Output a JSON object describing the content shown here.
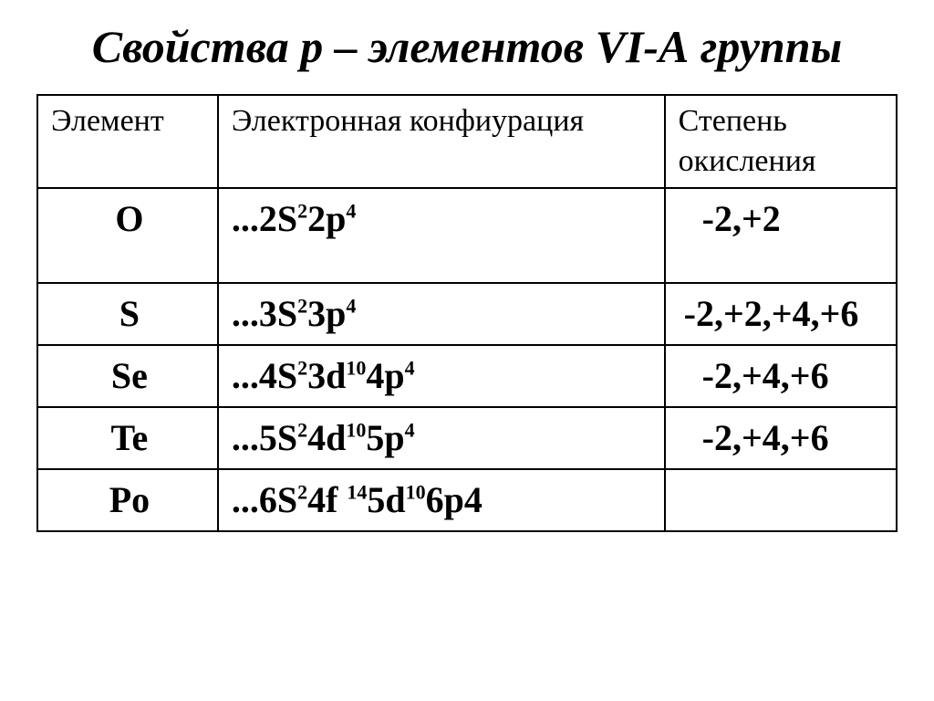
{
  "title": "Свойства р – элементов VI-А группы",
  "columns": [
    "Элемент",
    "Электронная конфиурация",
    "Степень окисления"
  ],
  "rows": [
    {
      "element": "O",
      "config": [
        {
          "t": "...2S"
        },
        {
          "t": "2",
          "sup": true
        },
        {
          "t": "2p"
        },
        {
          "t": "4",
          "sup": true
        }
      ],
      "oxidation": "-2,+2",
      "ox_nudge": true,
      "tall": true
    },
    {
      "element": "S",
      "config": [
        {
          "t": "...3S"
        },
        {
          "t": "2",
          "sup": true
        },
        {
          "t": "3p"
        },
        {
          "t": "4",
          "sup": true
        }
      ],
      "oxidation": "-2,+2,+4,+6",
      "ox_nudge": false,
      "tall": false
    },
    {
      "element": "Se",
      "config": [
        {
          "t": "...4S"
        },
        {
          "t": "2",
          "sup": true
        },
        {
          "t": "3d"
        },
        {
          "t": "10",
          "sup": true
        },
        {
          "t": "4p"
        },
        {
          "t": "4",
          "sup": true
        }
      ],
      "oxidation": "-2,+4,+6",
      "ox_nudge": true,
      "tall": false
    },
    {
      "element": "Te",
      "config": [
        {
          "t": "...5S"
        },
        {
          "t": "2",
          "sup": true
        },
        {
          "t": "4d"
        },
        {
          "t": "10",
          "sup": true
        },
        {
          "t": "5p"
        },
        {
          "t": "4",
          "sup": true
        }
      ],
      "oxidation": "-2,+4,+6",
      "ox_nudge": true,
      "tall": false
    },
    {
      "element": "Po",
      "config": [
        {
          "t": "...6S"
        },
        {
          "t": "2",
          "sup": true
        },
        {
          "t": "4f "
        },
        {
          "t": "14",
          "sup": true
        },
        {
          "t": "5d"
        },
        {
          "t": "10",
          "sup": true
        },
        {
          "t": "6p4"
        }
      ],
      "oxidation": "",
      "ox_nudge": false,
      "tall": false
    }
  ],
  "style": {
    "title_fontsize": 50,
    "header_fontsize": 34,
    "body_fontsize": 40,
    "border_color": "#000000",
    "background_color": "#ffffff",
    "text_color": "#000000",
    "col_widths_pct": [
      21,
      52,
      27
    ]
  }
}
